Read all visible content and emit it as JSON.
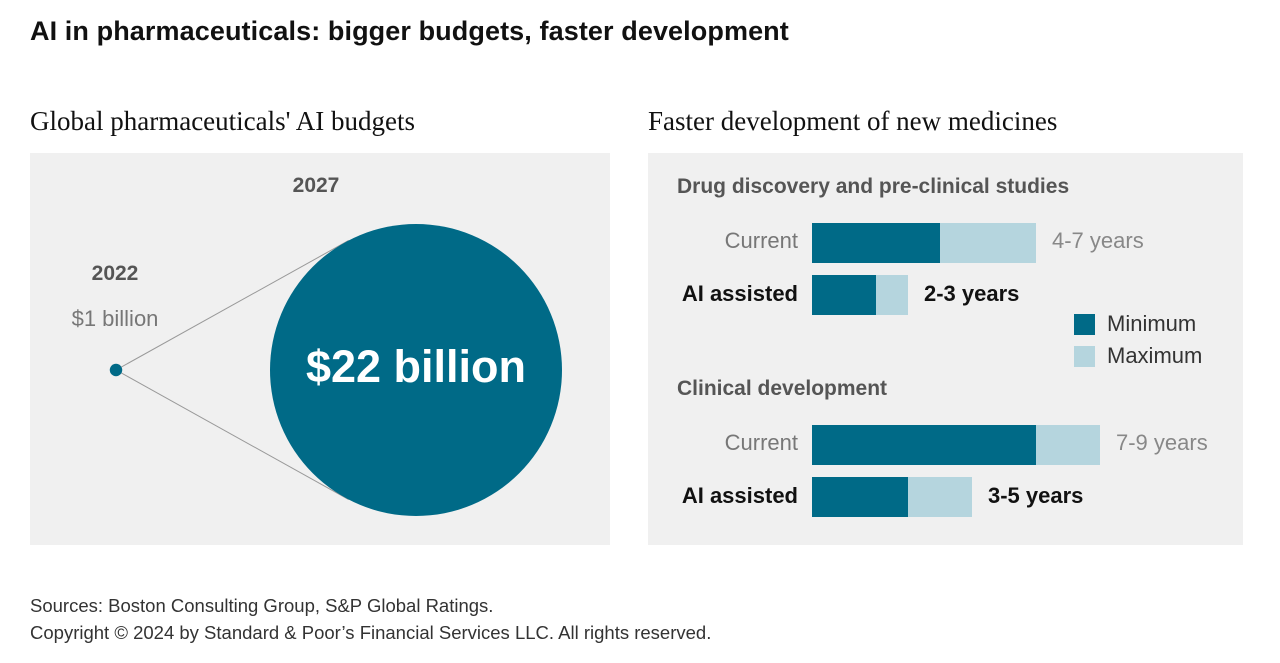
{
  "title": "AI in pharmaceuticals: bigger budgets, faster development",
  "colors": {
    "minimum": "#006a87",
    "maximum": "#b5d5de",
    "panel": "#f0f0f0"
  },
  "left_panel": {
    "subtitle": "Global pharmaceuticals' AI budgets",
    "year_2022": "2022",
    "value_2022": "$1 billion",
    "year_2027": "2027",
    "value_2027": "$22 billion"
  },
  "right_panel": {
    "subtitle": "Faster development of new medicines",
    "legend": {
      "minimum": "Minimum",
      "maximum": "Maximum"
    },
    "sections": [
      {
        "title": "Drug discovery and pre-clinical studies",
        "rows": [
          {
            "label": "Current",
            "range_label": "4-7 years",
            "min": 4,
            "max": 7
          },
          {
            "label": "AI assisted",
            "range_label": "2-3 years",
            "min": 2,
            "max": 3
          }
        ]
      },
      {
        "title": "Clinical development",
        "rows": [
          {
            "label": "Current",
            "range_label": "7-9 years",
            "min": 7,
            "max": 9
          },
          {
            "label": "AI assisted",
            "range_label": "3-5 years",
            "min": 3,
            "max": 5
          }
        ]
      }
    ]
  },
  "footer": {
    "sources": "Sources: Boston Consulting Group, S&P Global Ratings.",
    "copyright": "Copyright © 2024 by Standard & Poor’s Financial Services LLC. All rights reserved."
  },
  "chart_data": [
    {
      "type": "bubble",
      "title": "Global pharmaceuticals' AI budgets",
      "categories": [
        "2022",
        "2027"
      ],
      "values": [
        1,
        22
      ],
      "unit": "billion USD",
      "labels": [
        "$1 billion",
        "$22 billion"
      ]
    },
    {
      "type": "bar",
      "orientation": "horizontal",
      "stacked_range": true,
      "title": "Faster development of new medicines",
      "unit": "years",
      "groups": [
        "Drug discovery and pre-clinical studies",
        "Clinical development"
      ],
      "categories": [
        "Current",
        "AI assisted"
      ],
      "series": [
        {
          "name": "Minimum",
          "values": [
            [
              4,
              2
            ],
            [
              7,
              3
            ]
          ]
        },
        {
          "name": "Maximum",
          "values": [
            [
              7,
              3
            ],
            [
              9,
              5
            ]
          ]
        }
      ],
      "legend": [
        "Minimum",
        "Maximum"
      ],
      "legend_position": "right"
    }
  ]
}
